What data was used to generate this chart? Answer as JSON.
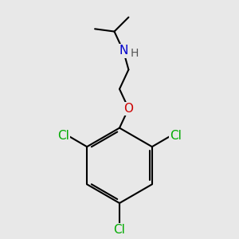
{
  "background_color": "#e8e8e8",
  "atom_colors": {
    "C": "#000000",
    "H": "#555555",
    "N": "#0000cc",
    "O": "#cc0000",
    "Cl": "#00aa00"
  },
  "bond_color": "#000000",
  "bond_width": 1.5,
  "font_size_atoms": 11,
  "font_size_h": 10
}
